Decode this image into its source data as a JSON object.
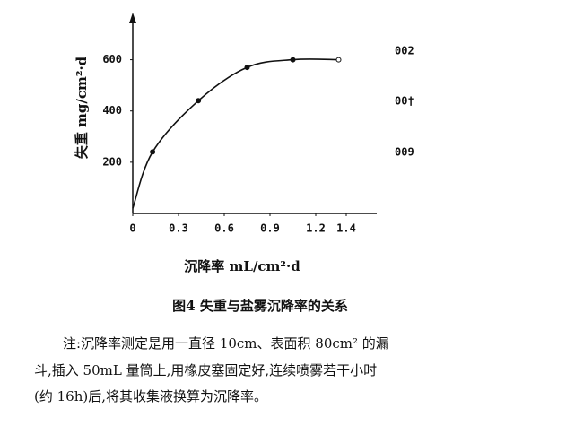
{
  "chart_data": {
    "type": "line",
    "y_label": "失重 mg/cm²·d",
    "x_label": "沉降率 mL/cm²·d",
    "caption": "图4 失重与盐雾沉降率的关系",
    "annotations": [
      "002",
      "00†",
      "009"
    ],
    "x": [
      0,
      0.13,
      0.43,
      0.75,
      1.05,
      1.35
    ],
    "series": [
      {
        "color": "#111111",
        "values": [
          20,
          240,
          440,
          570,
          600,
          600
        ]
      }
    ],
    "xlim": [
      0,
      1.5
    ],
    "ylim": [
      0,
      700
    ],
    "xticks": [
      0,
      0.3,
      0.6,
      0.9,
      1.2,
      1.4
    ],
    "yticks": [
      200,
      400,
      600
    ]
  },
  "note": [
    "注:沉降率测定是用一直径 10cm、表面积 80cm² 的漏",
    "斗,插入 50mL 量筒上,用橡皮塞固定好,连续喷雾若干小时",
    "(约 16h)后,将其收集液换算为沉降率。"
  ]
}
